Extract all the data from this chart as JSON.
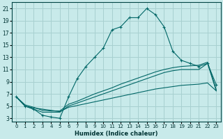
{
  "xlabel": "Humidex (Indice chaleur)",
  "xlim": [
    -0.5,
    23.5
  ],
  "ylim": [
    2.5,
    22
  ],
  "xticks": [
    0,
    1,
    2,
    3,
    4,
    5,
    6,
    7,
    8,
    9,
    10,
    11,
    12,
    13,
    14,
    15,
    16,
    17,
    18,
    19,
    20,
    21,
    22,
    23
  ],
  "yticks": [
    3,
    5,
    7,
    9,
    11,
    13,
    15,
    17,
    19,
    21
  ],
  "background_color": "#c8eaea",
  "grid_color": "#a8d0d0",
  "line_color": "#006666",
  "lines": [
    {
      "x": [
        0,
        1,
        2,
        3,
        4,
        5,
        6,
        7,
        8,
        9,
        10,
        11,
        12,
        13,
        14,
        15,
        16,
        17,
        18,
        19,
        20,
        21,
        22,
        23
      ],
      "y": [
        6.5,
        5.0,
        4.5,
        3.5,
        3.2,
        3.0,
        6.5,
        9.5,
        11.5,
        13.0,
        14.5,
        17.5,
        18.0,
        19.5,
        19.5,
        21.0,
        20.0,
        18.0,
        14.0,
        12.5,
        12.0,
        11.5,
        12.0,
        8.5
      ],
      "marker": true
    },
    {
      "x": [
        0,
        1,
        2,
        3,
        4,
        5,
        6,
        7,
        8,
        9,
        10,
        11,
        12,
        13,
        14,
        15,
        16,
        17,
        18,
        19,
        20,
        21,
        22,
        23
      ],
      "y": [
        6.5,
        5.0,
        4.5,
        4.0,
        4.0,
        4.0,
        5.0,
        5.5,
        6.0,
        6.5,
        7.0,
        7.5,
        8.0,
        8.5,
        9.0,
        9.5,
        10.0,
        10.5,
        10.8,
        11.0,
        11.0,
        11.0,
        12.0,
        7.5
      ],
      "marker": false
    },
    {
      "x": [
        0,
        1,
        2,
        3,
        4,
        5,
        6,
        7,
        8,
        9,
        10,
        11,
        12,
        13,
        14,
        15,
        16,
        17,
        18,
        19,
        20,
        21,
        22,
        23
      ],
      "y": [
        6.5,
        5.2,
        4.8,
        4.3,
        4.2,
        4.2,
        5.3,
        5.8,
        6.4,
        7.0,
        7.5,
        8.0,
        8.6,
        9.1,
        9.6,
        10.1,
        10.6,
        11.0,
        11.3,
        11.5,
        11.6,
        11.7,
        12.2,
        7.7
      ],
      "marker": false
    },
    {
      "x": [
        0,
        1,
        2,
        3,
        4,
        5,
        6,
        7,
        8,
        9,
        10,
        11,
        12,
        13,
        14,
        15,
        16,
        17,
        18,
        19,
        20,
        21,
        22,
        23
      ],
      "y": [
        6.5,
        5.0,
        4.7,
        4.5,
        4.3,
        4.1,
        4.8,
        5.1,
        5.4,
        5.7,
        6.0,
        6.3,
        6.6,
        6.9,
        7.2,
        7.5,
        7.8,
        8.0,
        8.2,
        8.4,
        8.5,
        8.6,
        8.8,
        7.5
      ],
      "marker": false
    }
  ]
}
